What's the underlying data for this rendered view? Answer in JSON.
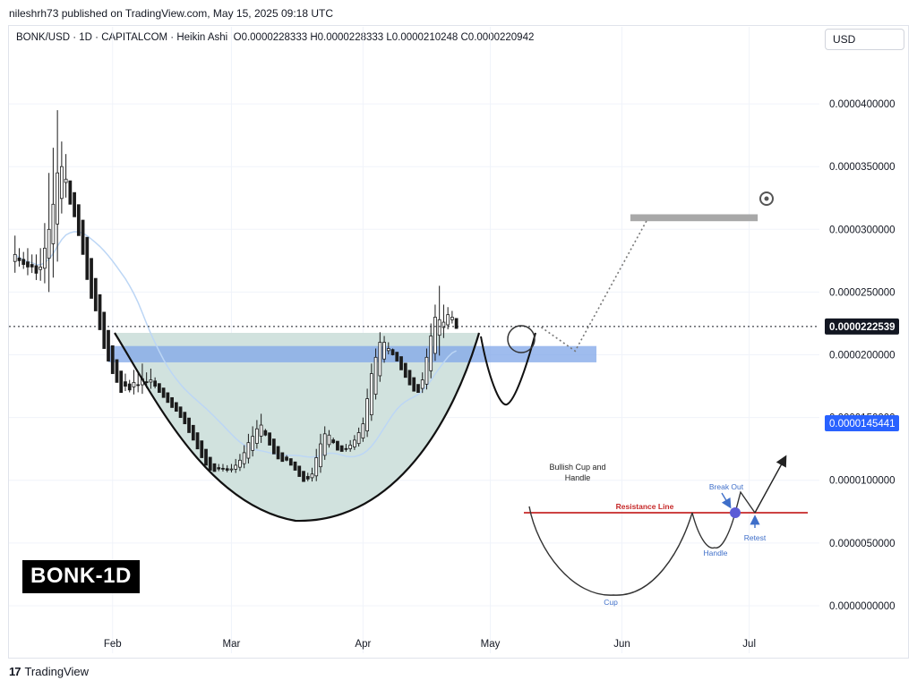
{
  "publisher": "nileshrh73 published on TradingView.com, May 15, 2025 09:18 UTC",
  "header": {
    "symbol": "BONK/USD · 1D · CAPITALCOM · Heikin Ashi",
    "ohlc": "O0.0000228333 H0.0000228333 L0.0000210248 C0.0000220942",
    "currency": "USD"
  },
  "badge": "BONK-1D",
  "brand": "TradingView",
  "colors": {
    "up": "#1b1b1b",
    "down": "#1b1b1b",
    "cup_fill": "#cfe0dc",
    "zone": "#7fa6e8",
    "ma": "#bcd6f5",
    "resistance": "#c62828",
    "price_tag": "#131722",
    "ma_tag": "#2962ff"
  },
  "chart_data": {
    "type": "candlestick",
    "subtype": "Heikin Ashi",
    "ylim": [
      -2e-06,
      4.4e-05
    ],
    "yticks": [
      "0.0000400000",
      "0.0000350000",
      "0.0000300000",
      "0.0000250000",
      "0.0000200000",
      "0.0000150000",
      "0.0000100000",
      "0.0000050000",
      "0.0000000000"
    ],
    "ytick_values": [
      4e-05,
      3.5e-05,
      3e-05,
      2.5e-05,
      2e-05,
      1.5e-05,
      1e-05,
      5e-06,
      0.0
    ],
    "x_start": "2025-01-08",
    "x_end": "2025-07-15",
    "xticks": [
      {
        "label": "Feb",
        "date": "2025-02-01"
      },
      {
        "label": "Mar",
        "date": "2025-03-01"
      },
      {
        "label": "Apr",
        "date": "2025-04-01"
      },
      {
        "label": "May",
        "date": "2025-05-01"
      },
      {
        "label": "Jun",
        "date": "2025-06-01"
      },
      {
        "label": "Jul",
        "date": "2025-07-01"
      }
    ],
    "current_price": {
      "value": 2.22539e-05,
      "label": "0.0000222539"
    },
    "ma_price": {
      "value": 1.45441e-05,
      "label": "0.0000145441"
    },
    "candles_start_date": "2025-01-09",
    "candles_close": [
      2.8e-05,
      2.75e-05,
      2.72e-05,
      2.7e-05,
      2.7e-05,
      2.65e-05,
      2.7e-05,
      2.85e-05,
      3e-05,
      3.2e-05,
      3.45e-05,
      3.5e-05,
      3.4e-05,
      3.2e-05,
      3.1e-05,
      2.95e-05,
      2.8e-05,
      2.6e-05,
      2.45e-05,
      2.35e-05,
      2.2e-05,
      2.05e-05,
      1.95e-05,
      1.85e-05,
      1.78e-05,
      1.7e-05,
      1.75e-05,
      1.72e-05,
      1.78e-05,
      1.76e-05,
      1.81e-05,
      1.78e-05,
      1.8e-05,
      1.75e-05,
      1.7e-05,
      1.66e-05,
      1.62e-05,
      1.58e-05,
      1.55e-05,
      1.5e-05,
      1.45e-05,
      1.38e-05,
      1.32e-05,
      1.25e-05,
      1.18e-05,
      1.12e-05,
      1.08e-05,
      1.07e-05,
      1.09e-05,
      1.09e-05,
      1.08e-05,
      1.09e-05,
      1.12e-05,
      1.16e-05,
      1.22e-05,
      1.3e-05,
      1.35e-05,
      1.41e-05,
      1.44e-05,
      1.36e-05,
      1.28e-05,
      1.21e-05,
      1.17e-05,
      1.15e-05,
      1.16e-05,
      1.12e-05,
      1.08e-05,
      1.03e-05,
      9.9e-06,
      1.01e-05,
      1.05e-05,
      1.18e-05,
      1.29e-05,
      1.37e-05,
      1.36e-05,
      1.3e-05,
      1.24e-05,
      1.23e-05,
      1.25e-05,
      1.28e-05,
      1.32e-05,
      1.38e-05,
      1.45e-05,
      1.65e-05,
      1.85e-05,
      1.98e-05,
      2.1e-05,
      2.1e-05,
      2.05e-05,
      2e-05,
      1.95e-05,
      1.88e-05,
      1.82e-05,
      1.76e-05,
      1.71e-05,
      1.7e-05,
      1.8e-05,
      1.98e-05,
      2.15e-05,
      2.3e-05,
      2.28e-05,
      2.26e-05,
      2.32e-05,
      2.3e-05,
      2.21e-05
    ],
    "candles_high": [
      2.95e-05,
      2.85e-05,
      2.82e-05,
      2.85e-05,
      2.8e-05,
      2.8e-05,
      2.85e-05,
      3.05e-05,
      3.45e-05,
      3.65e-05,
      3.95e-05,
      3.7e-05,
      3.6e-05,
      3.35e-05,
      3.25e-05,
      3.1e-05,
      2.95e-05,
      2.75e-05,
      2.55e-05,
      2.45e-05,
      2.3e-05,
      2.1e-05,
      2.05e-05,
      1.95e-05,
      1.85e-05,
      1.8e-05,
      1.85e-05,
      1.8e-05,
      1.88e-05,
      1.86e-05,
      1.93e-05,
      1.86e-05,
      1.89e-05,
      1.82e-05,
      1.77e-05,
      1.73e-05,
      1.68e-05,
      1.64e-05,
      1.61e-05,
      1.56e-05,
      1.51e-05,
      1.44e-05,
      1.38e-05,
      1.31e-05,
      1.24e-05,
      1.17e-05,
      1.13e-05,
      1.11e-05,
      1.13e-05,
      1.13e-05,
      1.12e-05,
      1.13e-05,
      1.17e-05,
      1.21e-05,
      1.28e-05,
      1.37e-05,
      1.43e-05,
      1.48e-05,
      1.53e-05,
      1.41e-05,
      1.33e-05,
      1.26e-05,
      1.21e-05,
      1.19e-05,
      1.2e-05,
      1.16e-05,
      1.12e-05,
      1.07e-05,
      1.04e-05,
      1.06e-05,
      1.1e-05,
      1.25e-05,
      1.37e-05,
      1.43e-05,
      1.4e-05,
      1.34e-05,
      1.28e-05,
      1.27e-05,
      1.29e-05,
      1.32e-05,
      1.36e-05,
      1.42e-05,
      1.5e-05,
      1.73e-05,
      1.93e-05,
      2.05e-05,
      2.18e-05,
      2.15e-05,
      2.1e-05,
      2.05e-05,
      2e-05,
      1.93e-05,
      1.87e-05,
      1.81e-05,
      1.76e-05,
      1.75e-05,
      1.86e-05,
      2.05e-05,
      2.25e-05,
      2.4e-05,
      2.55e-05,
      2.4e-05,
      2.38e-05,
      2.35e-05,
      2.28e-05
    ]
  },
  "overlay": {
    "target_zone": {
      "from_date": "2025-06-03",
      "to_date": "2025-07-03",
      "y_low": 3.065e-05,
      "y_high": 3.12e-05
    },
    "breakout_zone": {
      "from_date": "2025-01-31",
      "to_date": "2025-05-26",
      "y_low": 1.94e-05,
      "y_high": 2.07e-05
    },
    "projection_path": [
      {
        "date": "2025-05-13",
        "y": 2.22e-05
      },
      {
        "date": "2025-05-21",
        "y": 2.03e-05
      },
      {
        "date": "2025-06-07",
        "y": 3.08e-05
      }
    ]
  },
  "inset": {
    "title_line1": "Bullish Cup and",
    "title_line2": "Handle",
    "resistance_label": "Resistance Line",
    "breakout_label": "Break Out",
    "handle_label": "Handle",
    "retest_label": "Retest",
    "cup_label": "Cup"
  }
}
